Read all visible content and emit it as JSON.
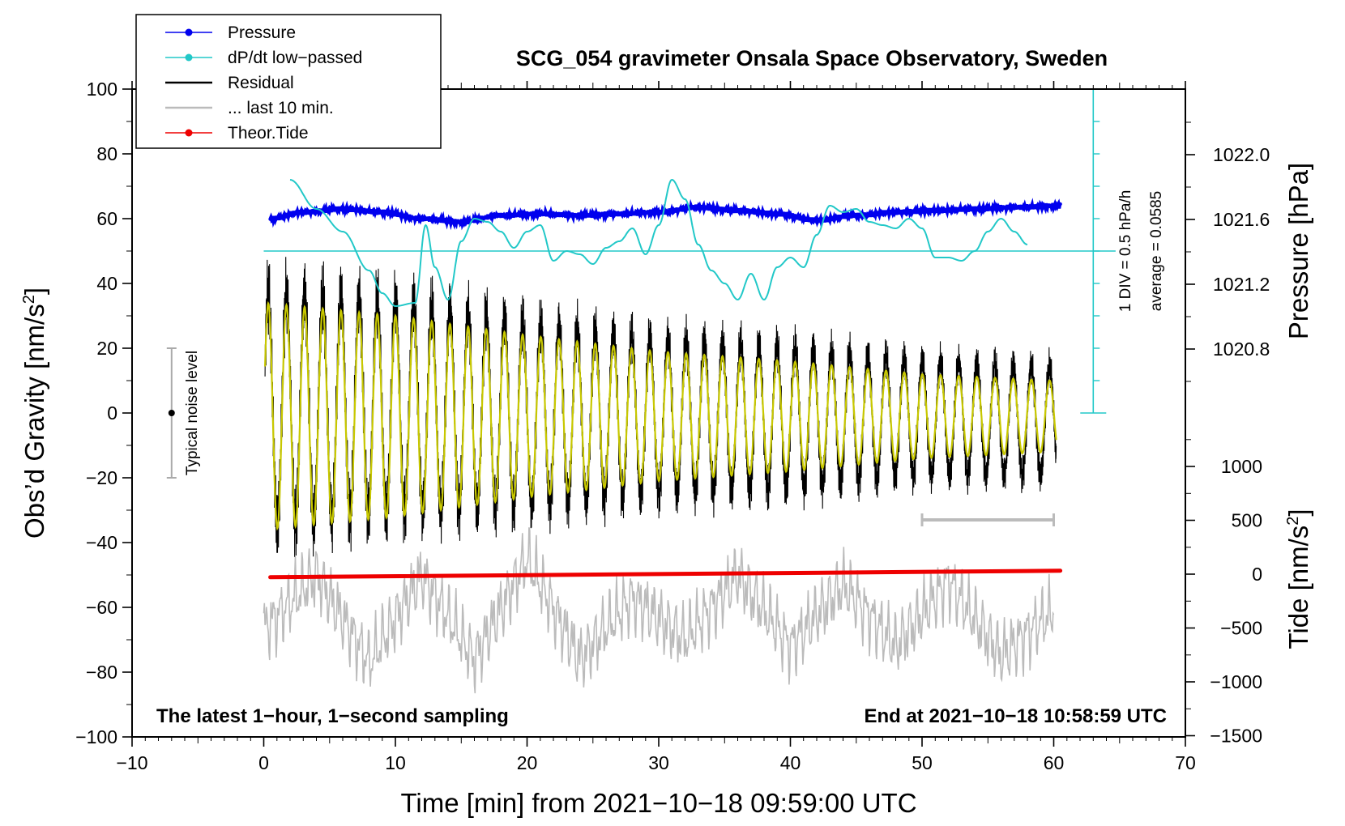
{
  "chart_data": {
    "type": "line",
    "title": "SCG_054 gravimeter Onsala Space Observatory, Sweden",
    "xlabel": "Time [min] from 2021−10−18 09:59:00 UTC",
    "xlim": [
      -10,
      70
    ],
    "x_ticks": [
      "−10",
      "0",
      "10",
      "20",
      "30",
      "40",
      "50",
      "60",
      "70"
    ],
    "left_axis": {
      "label": "Obs’d Gravity [nm/s",
      "label_sup": "2",
      "label_close": "]",
      "ylim": [
        -100,
        100
      ],
      "ticks": [
        "−100",
        "−80",
        "−60",
        "−40",
        "−20",
        "0",
        "20",
        "40",
        "60",
        "80",
        "100"
      ]
    },
    "right_axis_pressure": {
      "label": "Pressure [hPa]",
      "ticks": [
        "1020.8",
        "1021.2",
        "1021.6",
        "1022.0"
      ],
      "tick_values": [
        1020.8,
        1021.2,
        1021.6,
        1022.0
      ]
    },
    "right_axis_tide": {
      "label": "Tide [nm/s",
      "label_sup": "2",
      "label_close": "]",
      "ticks": [
        "1000",
        "500",
        "0",
        "−500",
        "−1000",
        "−1500"
      ],
      "tick_values": [
        1000,
        500,
        0,
        -500,
        -1000,
        -1500
      ]
    },
    "legend": {
      "position": "top-left",
      "entries": [
        {
          "label": "Pressure",
          "color": "#0000ee",
          "marker": "dot"
        },
        {
          "label": "dP/dt low−passed",
          "color": "#22c8c8",
          "marker": "dot"
        },
        {
          "label": "Residual",
          "color": "#000000",
          "marker": "none"
        },
        {
          "label": "... last 10 min.",
          "color": "#bbbbbb",
          "marker": "none"
        },
        {
          "label": "Theor.Tide",
          "color": "#ee0000",
          "marker": "dot"
        }
      ]
    },
    "series": [
      {
        "name": "Pressure",
        "color": "#0000ee",
        "units": "gravity-axis",
        "x": [
          0.5,
          3,
          6,
          9,
          12,
          15,
          18,
          21,
          24,
          27,
          30,
          33,
          36,
          39,
          42,
          45,
          48,
          51,
          54,
          57,
          60.5
        ],
        "values": [
          60,
          62,
          63,
          62,
          60,
          59,
          61,
          61.5,
          61,
          61.5,
          62,
          63.5,
          62.5,
          61.5,
          59.5,
          61,
          62,
          62.5,
          63,
          63.5,
          64
        ]
      },
      {
        "name": "dP/dt low-passed",
        "color": "#22c8c8",
        "units": "gravity-axis",
        "x": [
          2,
          4,
          6,
          8,
          9,
          10,
          11.5,
          12.3,
          13,
          14,
          15,
          16,
          17,
          18,
          19,
          20,
          21,
          22,
          23,
          24,
          25,
          26,
          27,
          28,
          29,
          30,
          31,
          32,
          33,
          34,
          35,
          36,
          37,
          38,
          39,
          40,
          41,
          42,
          43,
          44,
          45,
          46,
          47,
          48,
          49,
          50,
          51,
          52,
          53,
          54,
          55,
          56,
          57,
          58
        ],
        "values": [
          72,
          63,
          56,
          44,
          37,
          33,
          34,
          58,
          45,
          35,
          53,
          60,
          59,
          56,
          51,
          56,
          58,
          47,
          50,
          49,
          46,
          51,
          53,
          57,
          49,
          58,
          72,
          66,
          52,
          44,
          40,
          35,
          43,
          35,
          45,
          48,
          45,
          55,
          64,
          62,
          63,
          59,
          58,
          57,
          60,
          57,
          48,
          48,
          47,
          50,
          56,
          60,
          56,
          52
        ]
      },
      {
        "name": "Residual envelope",
        "color": "#000000",
        "units": "gravity-axis",
        "x": [
          0,
          10,
          20,
          30,
          40,
          50,
          60
        ],
        "max": [
          45,
          42,
          34,
          28,
          25,
          20,
          18
        ],
        "min": [
          -43,
          -38,
          -35,
          -30,
          -28,
          -23,
          -23
        ],
        "cycle_minutes": 1.38
      },
      {
        "name": "Residual smoothed",
        "color": "#c8c800",
        "units": "gravity-axis",
        "amplitude": [
          35,
          31,
          25,
          20,
          17,
          13,
          11
        ],
        "x": [
          0,
          10,
          20,
          30,
          40,
          50,
          60
        ]
      },
      {
        "name": "... last 10 min.",
        "color": "#bbbbbb",
        "units": "gravity-axis",
        "x": [
          0,
          4,
          8,
          12,
          16,
          20,
          24,
          28,
          32,
          36,
          40,
          44,
          48,
          52,
          56,
          60
        ],
        "values": [
          -67,
          -50,
          -77,
          -50,
          -76,
          -45,
          -76,
          -57,
          -70,
          -50,
          -72,
          -53,
          -72,
          -52,
          -75,
          -61
        ]
      },
      {
        "name": "Theor.Tide",
        "color": "#ee0000",
        "units": "gravity-axis",
        "x": [
          0.5,
          60.5
        ],
        "values": [
          -50.7,
          -48.7
        ]
      }
    ],
    "scale_bar": {
      "label": "1 DIV = 0.5 hPa/h",
      "average_label": "average = 0.0585",
      "x": 63,
      "y_range": [
        0,
        100
      ],
      "baseline_y": 50
    },
    "noise_bar": {
      "label": "Typical noise level",
      "x": -7,
      "y_range": [
        -20,
        20
      ],
      "center": 0
    },
    "window_bar": {
      "x_range": [
        50,
        60
      ],
      "y": -33
    },
    "footer_left": "The latest 1−hour, 1−second sampling",
    "footer_right": "End at 2021−10−18 10:58:59 UTC"
  }
}
